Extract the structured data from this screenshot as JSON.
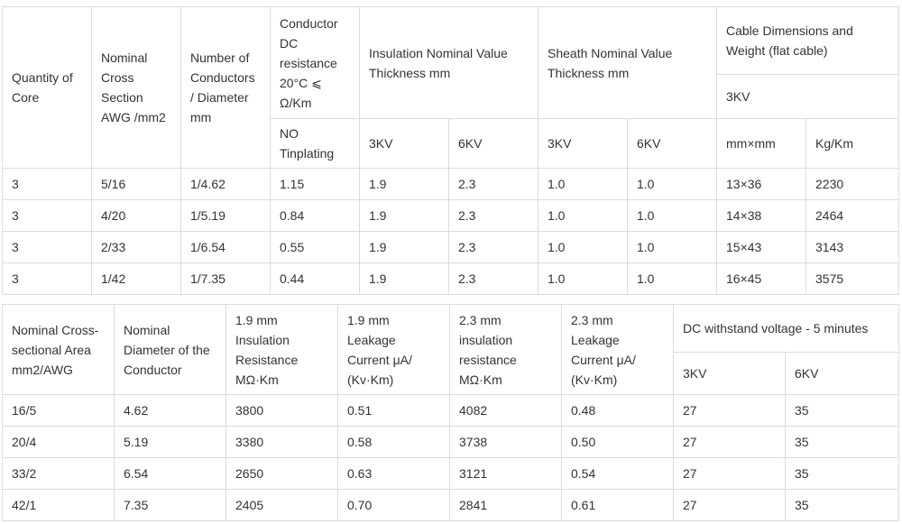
{
  "table1": {
    "headers": {
      "quantity": "Quantity of\nCore",
      "section": "Nominal\nCross\nSection\nAWG /mm2",
      "conductors": "Number of\nConductors\n/ Diameter\nmm",
      "resistance": "Conductor\nDC\nresistance\n20°C ⩽\nΩ/Km",
      "insulation": "Insulation Nominal Value\nThickness mm",
      "sheath": "Sheath Nominal Value\nThickness mm",
      "dimensions": "Cable Dimensions and\nWeight (flat cable)",
      "dim_3kv": "3KV",
      "no_tinplating": "NO\nTinplating",
      "ins_3kv": "3KV",
      "ins_6kv": "6KV",
      "sh_3kv": "3KV",
      "sh_6kv": "6KV",
      "mm_mm": "mm×mm",
      "kg_km": "Kg/Km"
    },
    "rows": [
      [
        "3",
        "5/16",
        "1/4.62",
        "1.15",
        "1.9",
        "2.3",
        "1.0",
        "1.0",
        "13×36",
        "2230"
      ],
      [
        "3",
        "4/20",
        "1/5.19",
        "0.84",
        "1.9",
        "2.3",
        "1.0",
        "1.0",
        "14×38",
        "2464"
      ],
      [
        "3",
        "2/33",
        "1/6.54",
        "0.55",
        "1.9",
        "2.3",
        "1.0",
        "1.0",
        "15×43",
        "3143"
      ],
      [
        "3",
        "1/42",
        "1/7.35",
        "0.44",
        "1.9",
        "2.3",
        "1.0",
        "1.0",
        "16×45",
        "3575"
      ]
    ]
  },
  "table2": {
    "headers": {
      "area": "Nominal Cross-\nsectional Area\nmm2/AWG",
      "diameter": "Nominal\nDiameter of the\nConductor",
      "ins_res_19": "1.9 mm\nInsulation\nResistance\nMΩ·Km",
      "leak_19": "1.9 mm\nLeakage\nCurrent μA/\n(Kv·Km)",
      "ins_res_23": "2.3 mm\ninsulation\nresistance\nMΩ·Km",
      "leak_23": "2.3 mm\nLeakage\nCurrent μA/\n(Kv·Km)",
      "withstand": "DC withstand voltage - 5 minutes",
      "ws_3kv": "3KV",
      "ws_6kv": "6KV"
    },
    "rows": [
      [
        "16/5",
        "4.62",
        "3800",
        "0.51",
        "4082",
        "0.48",
        "27",
        "35"
      ],
      [
        "20/4",
        "5.19",
        "3380",
        "0.58",
        "3738",
        "0.50",
        "27",
        "35"
      ],
      [
        "33/2",
        "6.54",
        "2650",
        "0.63",
        "3121",
        "0.54",
        "27",
        "35"
      ],
      [
        "42/1",
        "7.35",
        "2405",
        "0.70",
        "2841",
        "0.61",
        "27",
        "35"
      ]
    ]
  }
}
